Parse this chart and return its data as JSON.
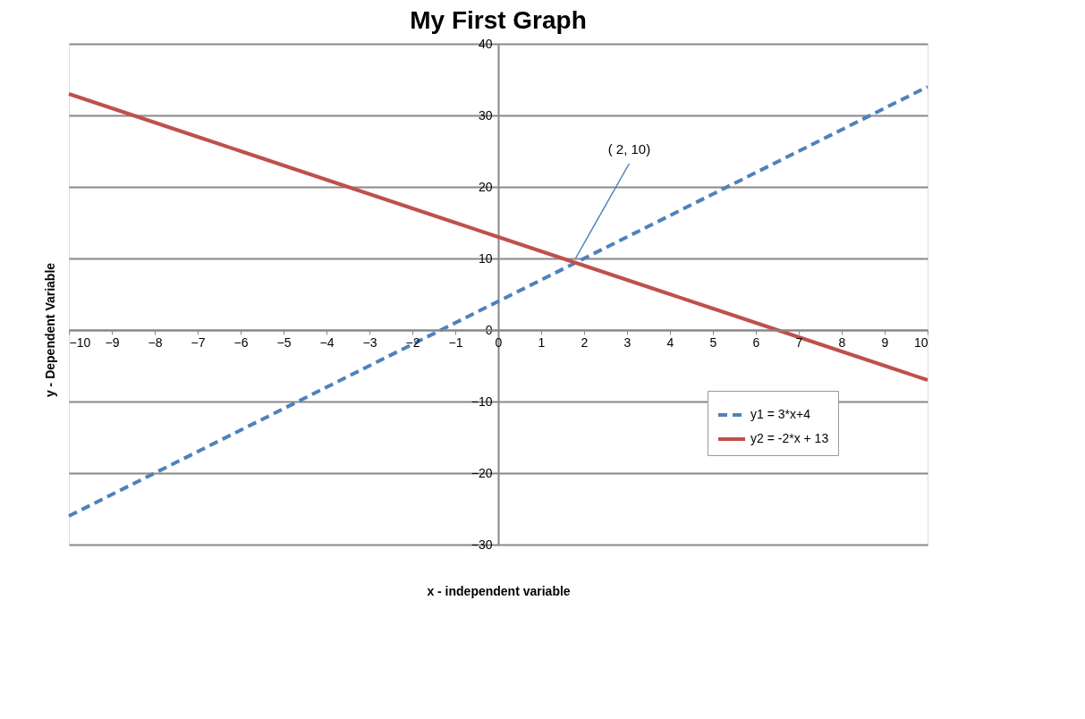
{
  "chart_data": {
    "type": "line",
    "title": "My First Graph",
    "xlabel": "x - independent variable",
    "ylabel": "y - Dependent Variable",
    "x": [
      -10,
      -9,
      -8,
      -7,
      -6,
      -5,
      -4,
      -3,
      -2,
      -1,
      0,
      1,
      2,
      3,
      4,
      5,
      6,
      7,
      8,
      9,
      10
    ],
    "series": [
      {
        "name": "y1 = 3*x+4",
        "color": "#4f81bd",
        "line_style": "dashed",
        "values": [
          -26,
          -23,
          -20,
          -17,
          -14,
          -11,
          -8,
          -5,
          -2,
          1,
          4,
          7,
          10,
          13,
          16,
          19,
          22,
          25,
          28,
          31,
          34
        ]
      },
      {
        "name": "y2 = -2*x + 13",
        "color": "#c0504d",
        "line_style": "solid",
        "values": [
          33,
          31,
          29,
          27,
          25,
          23,
          21,
          19,
          17,
          15,
          13,
          11,
          9,
          7,
          5,
          3,
          1,
          -1,
          -3,
          -5,
          -7
        ]
      }
    ],
    "xlim": [
      -10,
      10
    ],
    "xticks": [
      -10,
      -9,
      -8,
      -7,
      -6,
      -5,
      -4,
      -3,
      -2,
      -1,
      0,
      1,
      2,
      3,
      4,
      5,
      6,
      7,
      8,
      9,
      10
    ],
    "ylim": [
      -30,
      40
    ],
    "yticks": [
      -30,
      -20,
      -10,
      0,
      10,
      20,
      30,
      40
    ],
    "grid": "y",
    "legend": "bottom right",
    "marker": "none",
    "annotations": [
      {
        "text": "( 2, 10)",
        "x": 1.8,
        "y": 10
      }
    ]
  }
}
